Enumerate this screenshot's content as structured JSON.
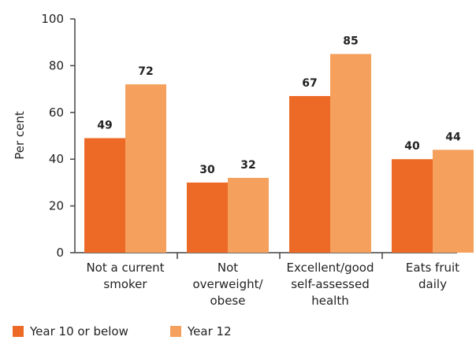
{
  "chart_data": {
    "type": "bar",
    "categories": [
      [
        "Not a current",
        "smoker"
      ],
      [
        "Not",
        "overweight/",
        "obese"
      ],
      [
        "Excellent/good",
        "self-assessed",
        "health"
      ],
      [
        "Eats fruit",
        "daily"
      ]
    ],
    "series": [
      {
        "name": "Year 10 or below",
        "color": "#ec6a26",
        "values": [
          49,
          30,
          67,
          40
        ]
      },
      {
        "name": "Year 12",
        "color": "#f5a05c",
        "values": [
          72,
          32,
          85,
          44
        ]
      }
    ],
    "title": "",
    "xlabel": "",
    "ylabel": "Per cent",
    "ylim": [
      0,
      100
    ],
    "yticks": [
      0,
      20,
      40,
      60,
      80,
      100
    ],
    "grid": false,
    "legend_position": "bottom-left",
    "data_labels": true
  }
}
